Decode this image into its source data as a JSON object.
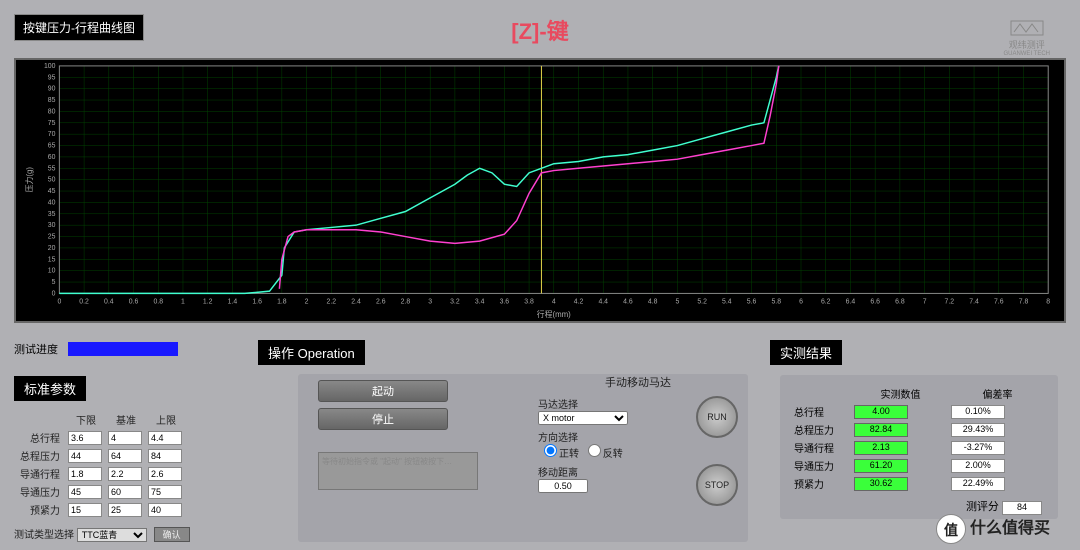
{
  "header": {
    "chart_title_chip": "按键压力-行程曲线图",
    "main_title": "[Z]-键",
    "logo_line1": "观纬测评",
    "logo_line2": "GUANWEI TECH"
  },
  "chart": {
    "bg_color": "#000000",
    "grid_color": "#004400",
    "axis_color": "#888888",
    "text_color": "#aaaaaa",
    "xlabel": "行程(mm)",
    "ylabel": "压力(g)",
    "xlim": [
      0,
      8
    ],
    "ylim": [
      0,
      100
    ],
    "xtick_step": 0.2,
    "ytick_step": 5,
    "marker_color_yellow": "#e8d84a",
    "marker_x": 3.9,
    "series": [
      {
        "name": "press",
        "color": "#40ffd0",
        "width": 1.5,
        "points": [
          [
            0,
            0
          ],
          [
            0.3,
            0
          ],
          [
            0.6,
            0
          ],
          [
            0.9,
            0
          ],
          [
            1.2,
            0
          ],
          [
            1.5,
            0
          ],
          [
            1.7,
            1
          ],
          [
            1.8,
            8
          ],
          [
            1.82,
            20
          ],
          [
            1.9,
            27
          ],
          [
            2.0,
            28
          ],
          [
            2.2,
            29
          ],
          [
            2.4,
            30
          ],
          [
            2.6,
            33
          ],
          [
            2.8,
            36
          ],
          [
            3.0,
            42
          ],
          [
            3.2,
            48
          ],
          [
            3.3,
            52
          ],
          [
            3.4,
            55
          ],
          [
            3.5,
            53
          ],
          [
            3.6,
            48
          ],
          [
            3.7,
            47
          ],
          [
            3.8,
            53
          ],
          [
            3.9,
            55
          ],
          [
            4.0,
            57
          ],
          [
            4.2,
            58
          ],
          [
            4.4,
            60
          ],
          [
            4.6,
            61
          ],
          [
            4.8,
            63
          ],
          [
            5.0,
            65
          ],
          [
            5.2,
            68
          ],
          [
            5.4,
            71
          ],
          [
            5.6,
            74
          ],
          [
            5.7,
            75
          ],
          [
            5.75,
            85
          ],
          [
            5.8,
            95
          ],
          [
            5.82,
            100
          ]
        ]
      },
      {
        "name": "release",
        "color": "#ff40d0",
        "width": 1.5,
        "points": [
          [
            1.78,
            2
          ],
          [
            1.8,
            15
          ],
          [
            1.85,
            25
          ],
          [
            1.9,
            27
          ],
          [
            2.0,
            28
          ],
          [
            2.2,
            28
          ],
          [
            2.4,
            28
          ],
          [
            2.6,
            27
          ],
          [
            2.8,
            25
          ],
          [
            3.0,
            23
          ],
          [
            3.2,
            22
          ],
          [
            3.4,
            23
          ],
          [
            3.6,
            26
          ],
          [
            3.7,
            32
          ],
          [
            3.8,
            44
          ],
          [
            3.9,
            53
          ],
          [
            4.0,
            54
          ],
          [
            4.2,
            55
          ],
          [
            4.4,
            56
          ],
          [
            4.6,
            57
          ],
          [
            4.8,
            58
          ],
          [
            5.0,
            59
          ],
          [
            5.2,
            61
          ],
          [
            5.4,
            63
          ],
          [
            5.6,
            65
          ],
          [
            5.7,
            66
          ],
          [
            5.75,
            78
          ],
          [
            5.8,
            92
          ],
          [
            5.82,
            100
          ]
        ]
      }
    ]
  },
  "progress": {
    "label": "测试进度",
    "pct": 100,
    "bar_color": "#1818ff"
  },
  "standard": {
    "title": "标准参数",
    "headers": [
      "下限",
      "基准",
      "上限"
    ],
    "rows": [
      {
        "label": "总行程",
        "lo": "3.6",
        "base": "4",
        "hi": "4.4"
      },
      {
        "label": "总程压力",
        "lo": "44",
        "base": "64",
        "hi": "84"
      },
      {
        "label": "导通行程",
        "lo": "1.8",
        "base": "2.2",
        "hi": "2.6"
      },
      {
        "label": "导通压力",
        "lo": "45",
        "base": "60",
        "hi": "75"
      },
      {
        "label": "预紧力",
        "lo": "15",
        "base": "25",
        "hi": "40"
      }
    ],
    "type_label": "测试类型选择",
    "type_value": "TTC蓝青",
    "confirm": "确认"
  },
  "operation": {
    "title": "操作 Operation",
    "start": "起动",
    "stop": "停止",
    "hint": "等待初始指令或 \"起动\" 按钮被按下…",
    "motor_title": "手动移动马达",
    "motor_select_label": "马达选择",
    "motor_select_value": "X motor",
    "dir_label": "方向选择",
    "dir_fwd": "正转",
    "dir_rev": "反转",
    "dist_label": "移动距离",
    "dist_value": "0.50",
    "run": "RUN",
    "stop_round": "STOP"
  },
  "result": {
    "title": "实测结果",
    "col_val": "实测数值",
    "col_dev": "偏差率",
    "rows": [
      {
        "label": "总行程",
        "val": "4.00",
        "dev": "0.10%"
      },
      {
        "label": "总程压力",
        "val": "82.84",
        "dev": "29.43%"
      },
      {
        "label": "导通行程",
        "val": "2.13",
        "dev": "-3.27%"
      },
      {
        "label": "导通压力",
        "val": "61.20",
        "dev": "2.00%"
      },
      {
        "label": "预紧力",
        "val": "30.62",
        "dev": "22.49%"
      }
    ],
    "score_label": "测评分",
    "score_value": "84"
  },
  "watermark": {
    "circle": "值",
    "text": "什么值得买"
  }
}
